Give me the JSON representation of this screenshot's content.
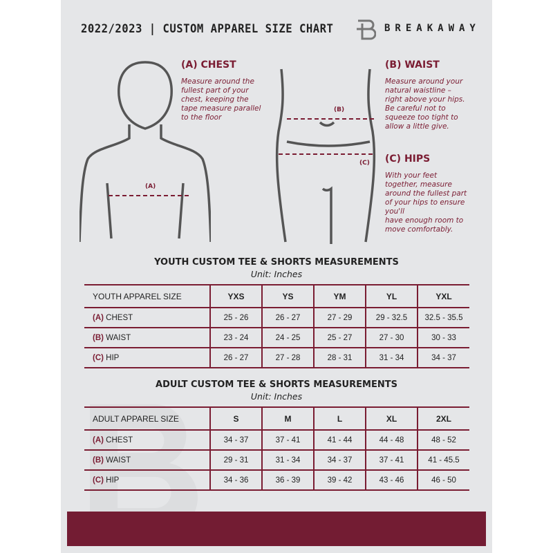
{
  "header": {
    "title": "2022/2023  |  CUSTOM APPAREL SIZE CHART",
    "brand": "BREAKAWAY"
  },
  "colors": {
    "accent": "#7a1c32",
    "band": "#731c33",
    "background": "#e5e6e8"
  },
  "chest": {
    "title": "(A) CHEST",
    "marker": "(A)",
    "desc": [
      "Measure around the",
      "fullest part of your",
      "chest, keeping the",
      "tape measure parallel",
      "to the floor"
    ]
  },
  "waist": {
    "title": "(B) WAIST",
    "marker": "(B)",
    "desc": [
      "Measure around your",
      "natural waistline –",
      "right above your hips.",
      "Be careful not to",
      "squeeze too tight to",
      "allow a little give."
    ]
  },
  "hips": {
    "title": "(C) HIPS",
    "marker": "(C)",
    "desc": [
      "With your feet",
      "together, measure",
      "around the fullest part",
      "of your hips to ensure",
      "you'll",
      "have enough room to",
      "move comfortably."
    ]
  },
  "youth": {
    "title": "YOUTH CUSTOM TEE & SHORTS MEASUREMENTS",
    "unit": "Unit: Inches",
    "header": "YOUTH APPAREL SIZE",
    "sizes": [
      "YXS",
      "YS",
      "YM",
      "YL",
      "YXL"
    ],
    "rows": [
      {
        "letter": "(A)",
        "label": "CHEST",
        "values": [
          "25 - 26",
          "26 - 27",
          "27 - 29",
          "29 - 32.5",
          "32.5 - 35.5"
        ]
      },
      {
        "letter": "(B)",
        "label": "WAIST",
        "values": [
          "23 - 24",
          "24 - 25",
          "25 - 27",
          "27 - 30",
          "30 - 33"
        ]
      },
      {
        "letter": "(C)",
        "label": "HIP",
        "values": [
          "26 - 27",
          "27 - 28",
          "28 - 31",
          "31 - 34",
          "34 - 37"
        ]
      }
    ]
  },
  "adult": {
    "title": "ADULT CUSTOM TEE & SHORTS MEASUREMENTS",
    "unit": "Unit: Inches",
    "header": "ADULT APPAREL SIZE",
    "sizes": [
      "S",
      "M",
      "L",
      "XL",
      "2XL"
    ],
    "rows": [
      {
        "letter": "(A)",
        "label": "CHEST",
        "values": [
          "34 - 37",
          "37 - 41",
          "41 - 44",
          "44 - 48",
          "48 - 52"
        ]
      },
      {
        "letter": "(B)",
        "label": "WAIST",
        "values": [
          "29 - 31",
          "31 - 34",
          "34 - 37",
          "37 - 41",
          "41 - 45.5"
        ]
      },
      {
        "letter": "(C)",
        "label": "HIP",
        "values": [
          "34 - 36",
          "36 - 39",
          "39 - 42",
          "43 - 46",
          "46 - 50"
        ]
      }
    ]
  }
}
